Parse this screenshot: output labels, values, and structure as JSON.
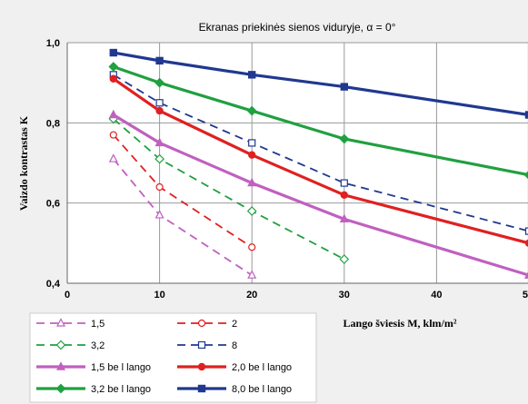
{
  "chart_data": {
    "type": "line",
    "title": "Ekranas priekinės sienos viduryje, α = 0°",
    "xlabel": "Lango šviesis M, klm/m²",
    "ylabel": "Vaizdo kontrastas  K",
    "x_ticks": [
      "0",
      "10",
      "20",
      "30",
      "40",
      "5"
    ],
    "y_ticks": [
      "0,4",
      "0,6",
      "0,8",
      "1,0"
    ],
    "xlim": [
      0,
      50
    ],
    "ylim": [
      0.4,
      1.0
    ],
    "grid": true,
    "legend_position": "bottom-left",
    "series": [
      {
        "name": "1,5",
        "color": "#c060c0",
        "dash": true,
        "marker": "triangle",
        "thick": false,
        "x": [
          5,
          10,
          20
        ],
        "y": [
          0.71,
          0.57,
          0.42
        ]
      },
      {
        "name": "2",
        "color": "#e02020",
        "dash": true,
        "marker": "circle",
        "thick": false,
        "x": [
          5,
          10,
          20
        ],
        "y": [
          0.77,
          0.64,
          0.49
        ]
      },
      {
        "name": "3,2",
        "color": "#20a040",
        "dash": true,
        "marker": "diamond",
        "thick": false,
        "x": [
          5,
          10,
          20,
          30
        ],
        "y": [
          0.81,
          0.71,
          0.58,
          0.46
        ]
      },
      {
        "name": "8",
        "color": "#203890",
        "dash": true,
        "marker": "square",
        "thick": false,
        "x": [
          5,
          10,
          20,
          30,
          50
        ],
        "y": [
          0.92,
          0.85,
          0.75,
          0.65,
          0.53
        ]
      },
      {
        "name": "1,5 be l lango",
        "color": "#c060c0",
        "dash": false,
        "marker": "triangle",
        "thick": true,
        "x": [
          5,
          10,
          20,
          30,
          50
        ],
        "y": [
          0.82,
          0.75,
          0.65,
          0.56,
          0.42
        ]
      },
      {
        "name": "2,0 be l lango",
        "color": "#e02020",
        "dash": false,
        "marker": "circle",
        "thick": true,
        "x": [
          5,
          10,
          20,
          30,
          50
        ],
        "y": [
          0.91,
          0.83,
          0.72,
          0.62,
          0.5
        ]
      },
      {
        "name": "3,2 be l lango",
        "color": "#20a040",
        "dash": false,
        "marker": "diamond",
        "thick": true,
        "x": [
          5,
          10,
          20,
          30,
          50
        ],
        "y": [
          0.94,
          0.9,
          0.83,
          0.76,
          0.67
        ]
      },
      {
        "name": "8,0 be l lango",
        "color": "#203890",
        "dash": false,
        "marker": "square",
        "thick": true,
        "x": [
          5,
          10,
          20,
          30,
          50
        ],
        "y": [
          0.975,
          0.955,
          0.92,
          0.89,
          0.82
        ]
      }
    ]
  }
}
